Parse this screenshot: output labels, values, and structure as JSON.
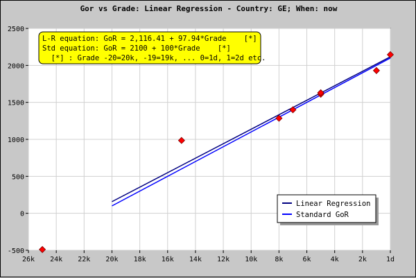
{
  "chart_data": {
    "type": "scatter",
    "title": "Gor vs Grade: Linear Regression - Country: GE; When: now",
    "x_tick_labels": [
      "26k",
      "24k",
      "22k",
      "20k",
      "18k",
      "16k",
      "14k",
      "12k",
      "10k",
      "8k",
      "6k",
      "4k",
      "2k",
      "1d"
    ],
    "x_ticks": [
      -26,
      -24,
      -22,
      -20,
      -18,
      -16,
      -14,
      -12,
      -10,
      -8,
      -6,
      -4,
      -2,
      0
    ],
    "xlim": [
      -26,
      0
    ],
    "ylim": [
      -500,
      2500
    ],
    "y_ticks": [
      -500,
      0,
      500,
      1000,
      1500,
      2000,
      2500
    ],
    "y_tick_labels": [
      "-500",
      "0",
      "500",
      "1000",
      "1500",
      "2000",
      "2500"
    ],
    "grid": true,
    "points": [
      {
        "x": -25,
        "y": -490
      },
      {
        "x": -15,
        "y": 985
      },
      {
        "x": -8,
        "y": 1285
      },
      {
        "x": -7,
        "y": 1400
      },
      {
        "x": -5,
        "y": 1610
      },
      {
        "x": -5,
        "y": 1630
      },
      {
        "x": -1,
        "y": 1930
      },
      {
        "x": 0,
        "y": 2145
      }
    ],
    "series": [
      {
        "name": "Linear Regression",
        "color": "#000080",
        "x": [
          -20,
          0
        ],
        "y": [
          157.61,
          2116.41
        ]
      },
      {
        "name": "Standard GoR",
        "color": "#0000ff",
        "x": [
          -20,
          0
        ],
        "y": [
          100,
          2100
        ]
      }
    ],
    "annotation_lines": [
      "L-R equation: GoR = 2,116.41 + 97.94*Grade    [*]",
      "Std equation: GoR = 2100 + 100*Grade    [*]",
      "  [*] : Grade -20=20k, -19=19k, ... 0=1d, 1=2d etc."
    ],
    "legend_position": "bottom-right",
    "colors": {
      "background": "#c8c8c8",
      "plot": "#ffffff",
      "annotation_box": "#ffff00",
      "marker": "#ff0000"
    }
  }
}
